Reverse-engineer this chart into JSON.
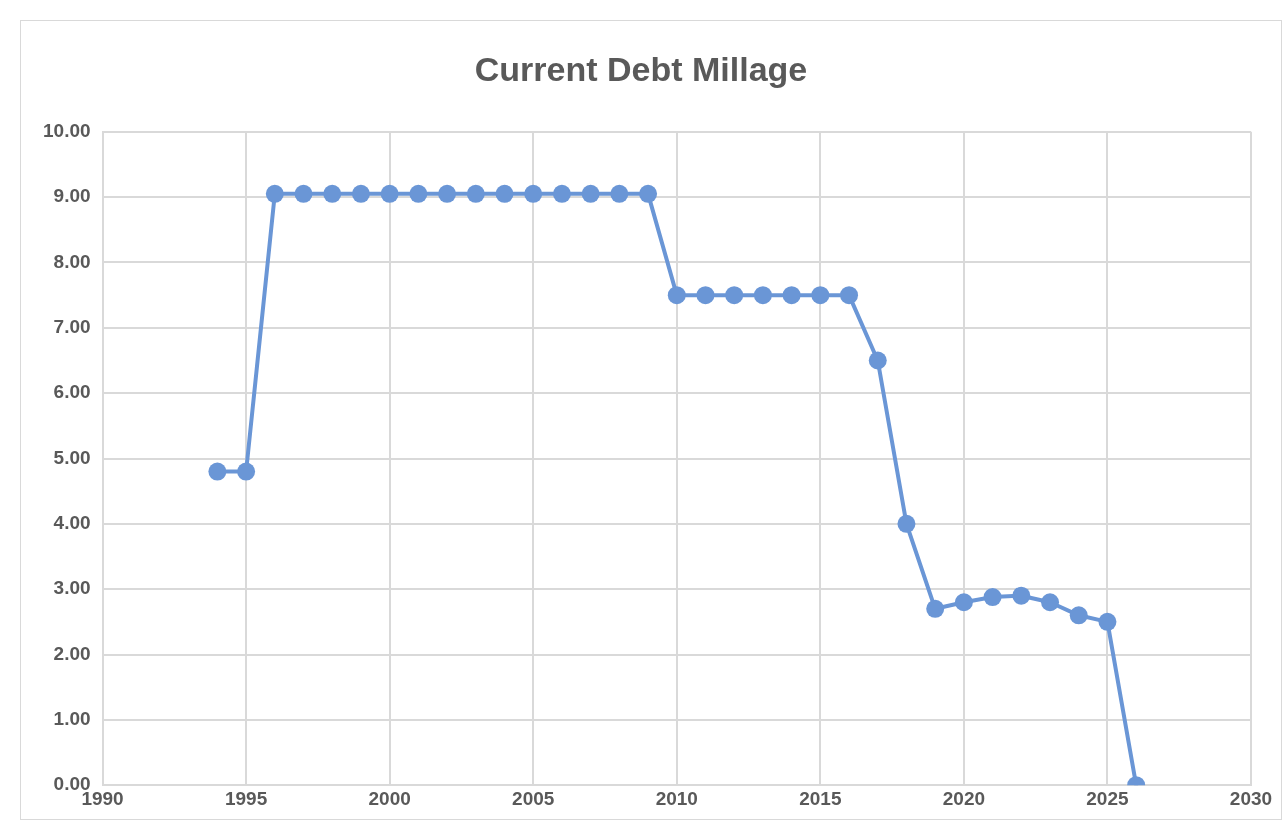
{
  "chart_data": {
    "type": "line",
    "title": "Current Debt Millage",
    "x": [
      1994,
      1995,
      1996,
      1997,
      1998,
      1999,
      2000,
      2001,
      2002,
      2003,
      2004,
      2005,
      2006,
      2007,
      2008,
      2009,
      2010,
      2011,
      2012,
      2013,
      2014,
      2015,
      2016,
      2017,
      2018,
      2019,
      2020,
      2021,
      2022,
      2023,
      2024,
      2025,
      2026
    ],
    "series": [
      {
        "color": "#6a96d6",
        "values": [
          4.8,
          4.8,
          9.05,
          9.05,
          9.05,
          9.05,
          9.05,
          9.05,
          9.05,
          9.05,
          9.05,
          9.05,
          9.05,
          9.05,
          9.05,
          9.05,
          7.5,
          7.5,
          7.5,
          7.5,
          7.5,
          7.5,
          7.5,
          6.5,
          4.0,
          2.7,
          2.8,
          2.88,
          2.9,
          2.8,
          2.6,
          2.5,
          0
        ]
      }
    ],
    "xlim": [
      1990,
      2030
    ],
    "xticks": [
      1990,
      1995,
      2000,
      2005,
      2010,
      2015,
      2020,
      2025,
      2030
    ],
    "ylim": [
      0,
      10
    ],
    "yticks": [
      {
        "value": 0,
        "label": "0.00"
      },
      {
        "value": 1,
        "label": "1.00"
      },
      {
        "value": 2,
        "label": "2.00"
      },
      {
        "value": 3,
        "label": "3.00"
      },
      {
        "value": 4,
        "label": "4.00"
      },
      {
        "value": 5,
        "label": "5.00"
      },
      {
        "value": 6,
        "label": "6.00"
      },
      {
        "value": 7,
        "label": "7.00"
      },
      {
        "value": 8,
        "label": "8.00"
      },
      {
        "value": 9,
        "label": "9.00"
      },
      {
        "value": 10,
        "label": "10.00"
      }
    ],
    "grid": true,
    "legend": false,
    "marker": "circle",
    "line_style": "solid"
  }
}
